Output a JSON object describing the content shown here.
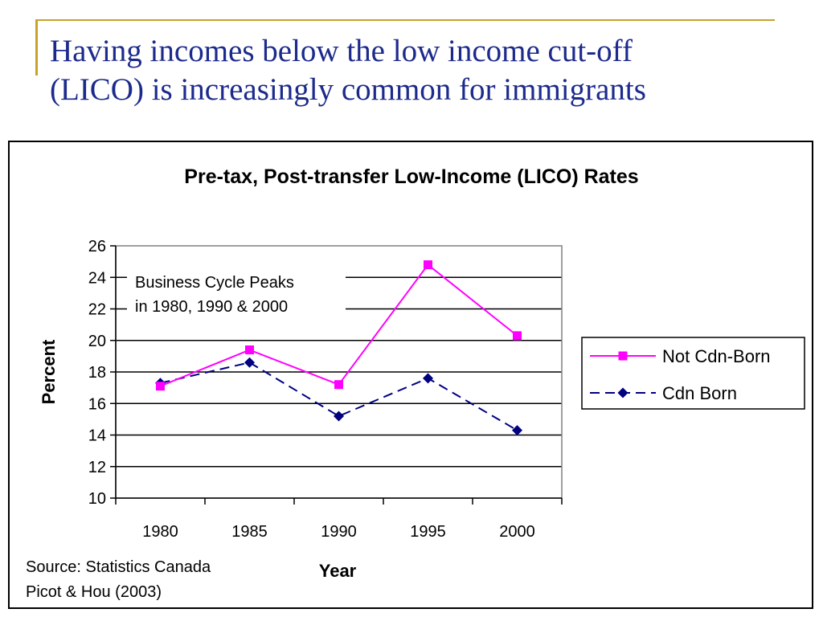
{
  "slide": {
    "title_lines": [
      "Having incomes below the low income cut-off",
      "(LICO) is increasingly common for immigrants"
    ]
  },
  "chart_data": {
    "type": "line",
    "title": "Pre-tax, Post-transfer Low-Income (LICO) Rates",
    "xlabel": "Year",
    "ylabel": "Percent",
    "categories": [
      "1980",
      "1985",
      "1990",
      "1995",
      "2000"
    ],
    "ylim": [
      10,
      26
    ],
    "yticks": [
      10,
      12,
      14,
      16,
      18,
      20,
      22,
      24,
      26
    ],
    "grid": true,
    "legend_position": "right",
    "series": [
      {
        "name": "Not Cdn-Born",
        "values": [
          17.1,
          19.4,
          17.2,
          24.8,
          20.3
        ],
        "color": "#ff00ff",
        "marker": "square",
        "line": "solid"
      },
      {
        "name": "Cdn Born",
        "values": [
          17.3,
          18.6,
          15.2,
          17.6,
          14.3
        ],
        "color": "#000080",
        "marker": "diamond",
        "line": "dashed"
      }
    ],
    "annotation": [
      "Business Cycle Peaks",
      "in 1980, 1990 & 2000"
    ],
    "source": [
      "Source: Statistics Canada",
      "Picot & Hou (2003)"
    ]
  }
}
